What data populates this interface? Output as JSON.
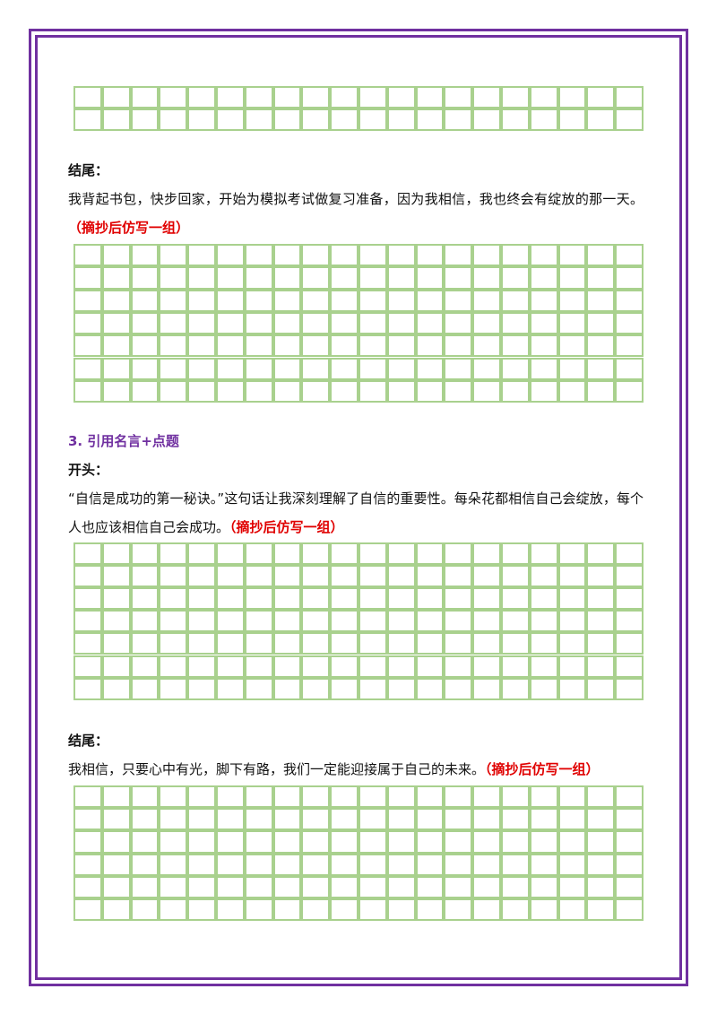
{
  "sections": [
    {
      "label": "结尾：",
      "text": "我背起书包，快步回家，开始为模拟考试做复习准备，因为我相信，我也终会有绽放的那一天。",
      "note": "（摘抄后仿写一组）"
    },
    {
      "heading": "3. 引用名言+点题",
      "label": "开头：",
      "text": "“自信是成功的第一秘诀。”这句话让我深刻理解了自信的重要性。每朵花都相信自己会绽放，每个人也应该相信自己会成功。",
      "note": "（摘抄后仿写一组）"
    },
    {
      "label": "结尾：",
      "text": "我相信，只要心中有光，脚下有路，我们一定能迎接属于自己的未来。",
      "note": "（摘抄后仿写一组）"
    }
  ]
}
